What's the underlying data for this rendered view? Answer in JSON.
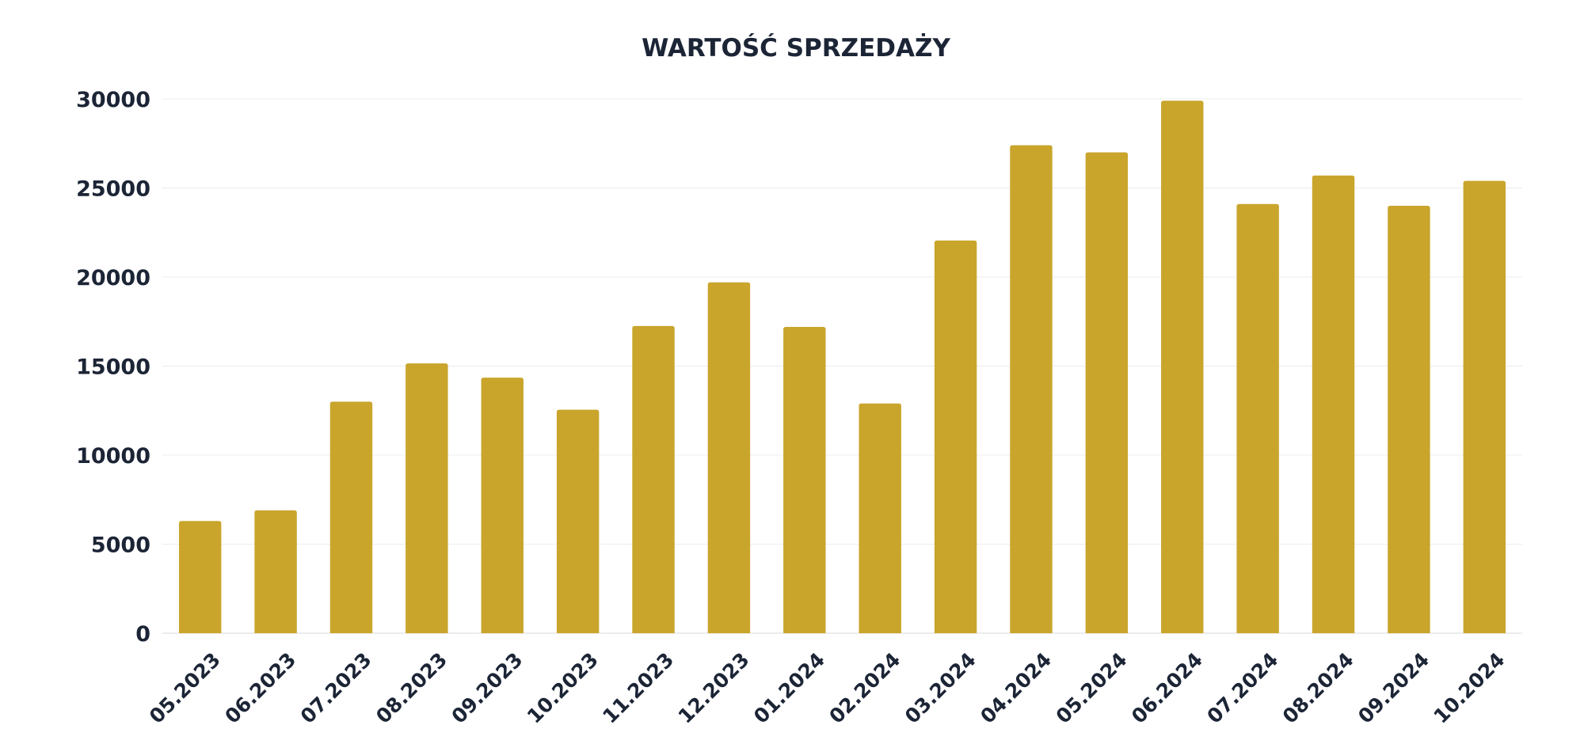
{
  "chart_data": {
    "type": "bar",
    "title": "WARTOŚĆ SPRZEDAŻY",
    "xlabel": "",
    "ylabel": "",
    "categories": [
      "05.2023",
      "06.2023",
      "07.2023",
      "08.2023",
      "09.2023",
      "10.2023",
      "11.2023",
      "12.2023",
      "01.2024",
      "02.2024",
      "03.2024",
      "04.2024",
      "05.2024",
      "06.2024",
      "07.2024",
      "08.2024",
      "09.2024",
      "10.2024"
    ],
    "values": [
      6300,
      6900,
      13000,
      15150,
      14350,
      12550,
      17250,
      19700,
      17200,
      12900,
      22050,
      27400,
      27000,
      29900,
      24100,
      25700,
      24000,
      25400
    ],
    "ylim": [
      0,
      30000
    ],
    "yticks": [
      0,
      5000,
      10000,
      15000,
      20000,
      25000,
      30000
    ],
    "grid": true,
    "legend": "none",
    "bar_color": "#c9a52c",
    "text_color": "#1c2536",
    "grid_color": "#ececec"
  }
}
